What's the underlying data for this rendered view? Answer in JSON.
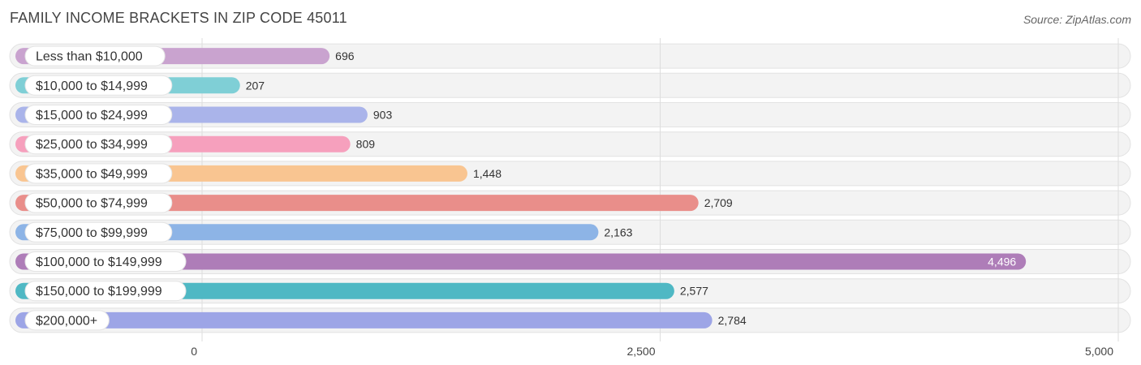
{
  "title": "FAMILY INCOME BRACKETS IN ZIP CODE 45011",
  "source": "Source: ZipAtlas.com",
  "chart_data": {
    "type": "bar",
    "orientation": "horizontal",
    "title": "FAMILY INCOME BRACKETS IN ZIP CODE 45011",
    "xlabel": "",
    "ylabel": "",
    "xlim": [
      0,
      5000
    ],
    "ticks": [
      0,
      2500,
      5000
    ],
    "tick_labels": [
      "0",
      "2,500",
      "5,000"
    ],
    "grid": true,
    "categories": [
      "Less than $10,000",
      "$10,000 to $14,999",
      "$15,000 to $24,999",
      "$25,000 to $34,999",
      "$35,000 to $49,999",
      "$50,000 to $74,999",
      "$75,000 to $99,999",
      "$100,000 to $149,999",
      "$150,000 to $199,999",
      "$200,000+"
    ],
    "values": [
      696,
      207,
      903,
      809,
      1448,
      2709,
      2163,
      4496,
      2577,
      2784
    ],
    "value_labels": [
      "696",
      "207",
      "903",
      "809",
      "1,448",
      "2,709",
      "2,163",
      "4,496",
      "2,577",
      "2,784"
    ],
    "colors": [
      "#c9a3cf",
      "#7fcfd6",
      "#aab4ea",
      "#f6a0bd",
      "#f9c591",
      "#e98e8a",
      "#8db4e6",
      "#ae7db8",
      "#4fb8c4",
      "#9da5e6"
    ]
  }
}
